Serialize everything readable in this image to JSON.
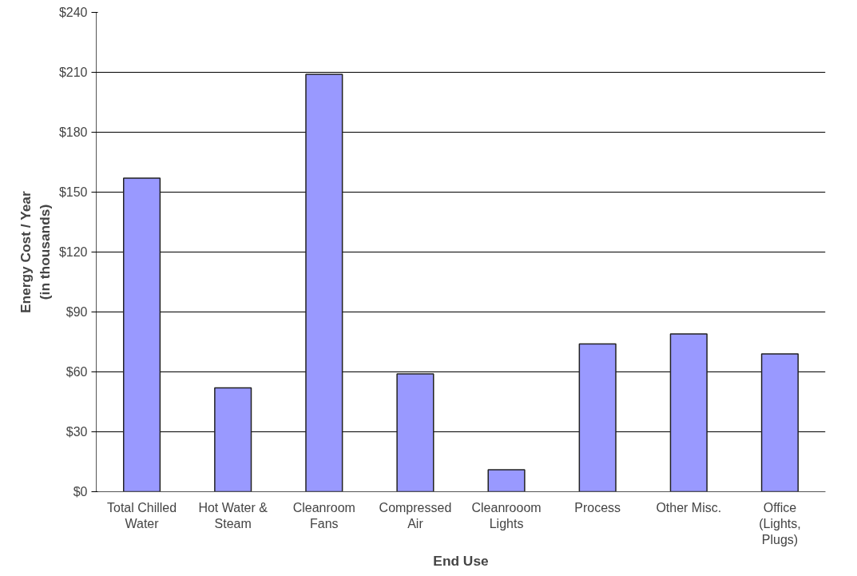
{
  "chart_data": {
    "type": "bar",
    "xlabel": "End Use",
    "ylabel": "Energy Cost / Year\n(in thousands)",
    "categories": [
      "Total Chilled\nWater",
      "Hot Water &\nSteam",
      "Cleanroom\nFans",
      "Compressed\nAir",
      "Cleanrooom\nLights",
      "Process",
      "Other Misc.",
      "Office\n(Lights,\nPlugs)"
    ],
    "values": [
      157,
      52,
      209,
      59,
      11,
      74,
      79,
      69
    ],
    "color": "#9999ff",
    "ylim": [
      0,
      240
    ],
    "yticks": [
      {
        "value": 0,
        "label": "$0"
      },
      {
        "value": 30,
        "label": "$30"
      },
      {
        "value": 60,
        "label": "$60"
      },
      {
        "value": 90,
        "label": "$90"
      },
      {
        "value": 120,
        "label": "$120"
      },
      {
        "value": 150,
        "label": "$150"
      },
      {
        "value": 180,
        "label": "$180"
      },
      {
        "value": 210,
        "label": "$210"
      },
      {
        "value": 240,
        "label": "$240"
      }
    ],
    "grid": "y"
  }
}
